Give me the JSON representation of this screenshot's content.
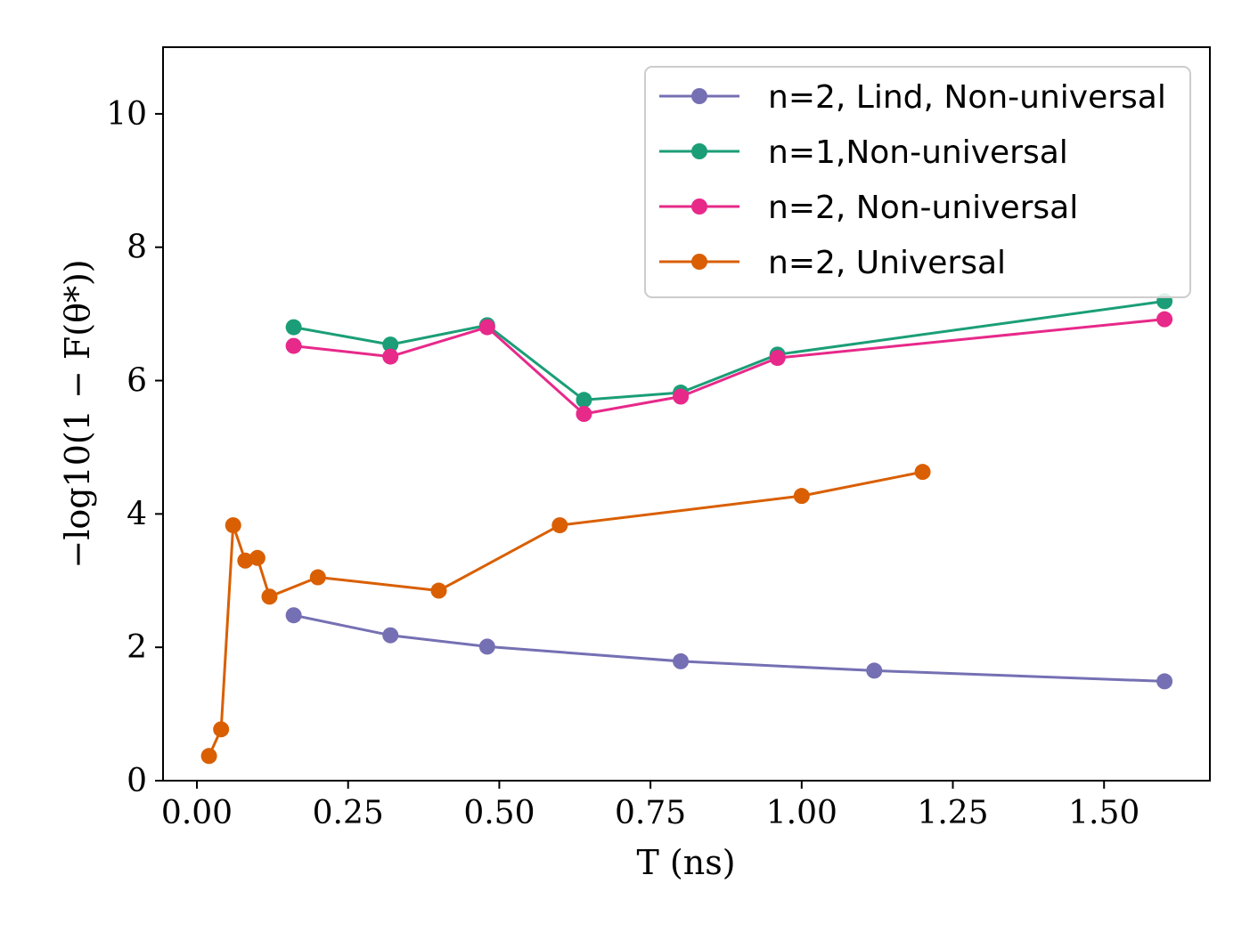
{
  "chart_data": {
    "type": "line",
    "title": "",
    "xlabel": "T (ns)",
    "ylabel": "−log10(1 − F(θ*))",
    "xlim": [
      -0.056,
      1.675
    ],
    "ylim": [
      0,
      11
    ],
    "xticks": [
      0.0,
      0.25,
      0.5,
      0.75,
      1.0,
      1.25,
      1.5
    ],
    "xtick_labels": [
      "0.00",
      "0.25",
      "0.50",
      "0.75",
      "1.00",
      "1.25",
      "1.50"
    ],
    "yticks": [
      0,
      2,
      4,
      6,
      8,
      10
    ],
    "ytick_labels": [
      "0",
      "2",
      "4",
      "6",
      "8",
      "10"
    ],
    "grid": false,
    "legend_position": "top-right",
    "series": [
      {
        "name": "n=2, Lind, Non-universal",
        "color": "#7570b3",
        "x": [
          0.16,
          0.32,
          0.48,
          0.8,
          1.12,
          1.6
        ],
        "y": [
          2.48,
          2.18,
          2.01,
          1.79,
          1.65,
          1.49
        ]
      },
      {
        "name": "n=1,Non-universal",
        "color": "#1b9e77",
        "x": [
          0.16,
          0.32,
          0.48,
          0.64,
          0.8,
          0.96,
          1.6
        ],
        "y": [
          6.8,
          6.54,
          6.83,
          5.71,
          5.82,
          6.39,
          7.19
        ]
      },
      {
        "name": "n=2, Non-universal",
        "color": "#e7298a",
        "x": [
          0.16,
          0.32,
          0.48,
          0.64,
          0.8,
          0.96,
          1.6
        ],
        "y": [
          6.52,
          6.36,
          6.8,
          5.5,
          5.76,
          6.34,
          6.92
        ]
      },
      {
        "name": "n=2, Universal",
        "color": "#d95f02",
        "x": [
          0.02,
          0.04,
          0.06,
          0.08,
          0.1,
          0.12,
          0.2,
          0.4,
          0.6,
          1.0,
          1.2
        ],
        "y": [
          0.37,
          0.77,
          3.83,
          3.3,
          3.34,
          2.76,
          3.05,
          2.85,
          3.83,
          4.27,
          4.63
        ]
      }
    ]
  }
}
